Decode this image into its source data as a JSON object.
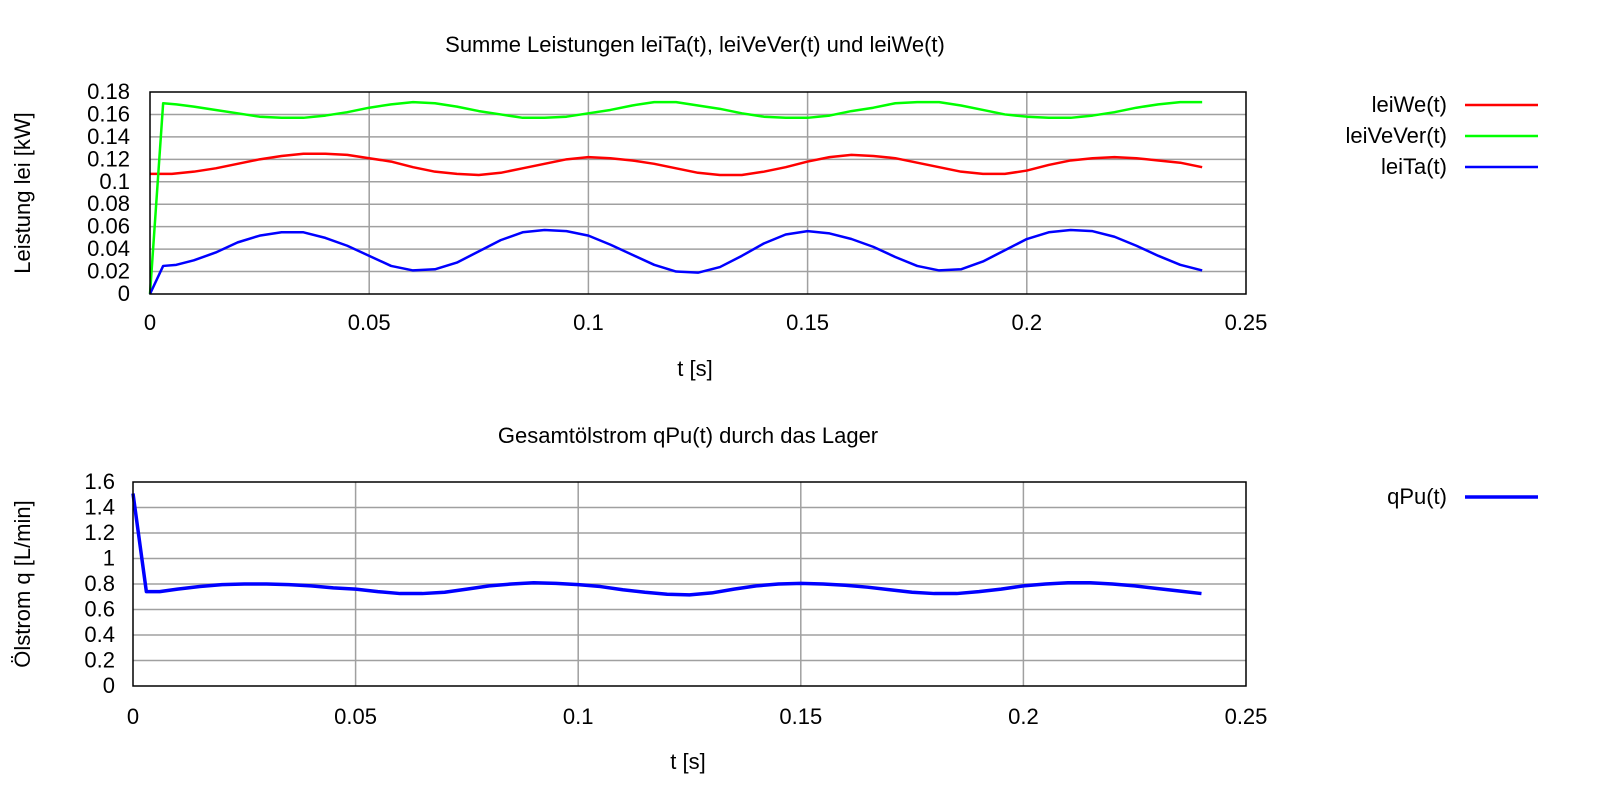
{
  "chart_data": [
    {
      "type": "line",
      "title": "Summe Leistungen leiTa(t), leiVeVer(t) und leiWe(t)",
      "xlabel": "t [s]",
      "ylabel": "Leistung lei [kW]",
      "xlim": [
        0,
        0.25
      ],
      "ylim": [
        0,
        0.18
      ],
      "xticks": [
        0,
        0.05,
        0.1,
        0.15,
        0.2,
        0.25
      ],
      "xtick_labels": [
        "0",
        "0.05",
        "0.1",
        "0.15",
        "0.2",
        "0.25"
      ],
      "yticks": [
        0,
        0.02,
        0.04,
        0.06,
        0.08,
        0.1,
        0.12,
        0.14,
        0.16,
        0.18
      ],
      "ytick_labels": [
        "0",
        "0.02",
        "0.04",
        "0.06",
        "0.08",
        "0.1",
        "0.12",
        "0.14",
        "0.16",
        "0.18"
      ],
      "grid": true,
      "legend_position": "right",
      "series": [
        {
          "name": "leiWe(t)",
          "color": "#ff0000",
          "x": [
            0.0,
            0.005,
            0.01,
            0.015,
            0.02,
            0.025,
            0.03,
            0.035,
            0.04,
            0.045,
            0.05,
            0.055,
            0.06,
            0.065,
            0.07,
            0.075,
            0.08,
            0.085,
            0.09,
            0.095,
            0.1,
            0.105,
            0.11,
            0.115,
            0.12,
            0.125,
            0.13,
            0.135,
            0.14,
            0.145,
            0.15,
            0.155,
            0.16,
            0.165,
            0.17,
            0.175,
            0.18,
            0.185,
            0.19,
            0.195,
            0.2,
            0.205,
            0.21,
            0.215,
            0.22,
            0.225,
            0.23,
            0.235,
            0.24
          ],
          "y": [
            0.107,
            0.107,
            0.109,
            0.112,
            0.116,
            0.12,
            0.123,
            0.125,
            0.125,
            0.124,
            0.121,
            0.118,
            0.113,
            0.109,
            0.107,
            0.106,
            0.108,
            0.112,
            0.116,
            0.12,
            0.122,
            0.121,
            0.119,
            0.116,
            0.112,
            0.108,
            0.106,
            0.106,
            0.109,
            0.113,
            0.118,
            0.122,
            0.124,
            0.123,
            0.121,
            0.117,
            0.113,
            0.109,
            0.107,
            0.107,
            0.11,
            0.115,
            0.119,
            0.121,
            0.122,
            0.121,
            0.119,
            0.117,
            0.113
          ]
        },
        {
          "name": "leiVeVer(t)",
          "color": "#00ff00",
          "x": [
            0.0,
            0.003,
            0.006,
            0.01,
            0.015,
            0.02,
            0.025,
            0.03,
            0.035,
            0.04,
            0.045,
            0.05,
            0.055,
            0.06,
            0.065,
            0.07,
            0.075,
            0.08,
            0.085,
            0.09,
            0.095,
            0.1,
            0.105,
            0.11,
            0.115,
            0.12,
            0.125,
            0.13,
            0.135,
            0.14,
            0.145,
            0.15,
            0.155,
            0.16,
            0.165,
            0.17,
            0.175,
            0.18,
            0.185,
            0.19,
            0.195,
            0.2,
            0.205,
            0.21,
            0.215,
            0.22,
            0.225,
            0.23,
            0.235,
            0.24
          ],
          "y": [
            0.0,
            0.17,
            0.169,
            0.167,
            0.164,
            0.161,
            0.158,
            0.157,
            0.157,
            0.159,
            0.162,
            0.166,
            0.169,
            0.171,
            0.17,
            0.167,
            0.163,
            0.16,
            0.157,
            0.157,
            0.158,
            0.161,
            0.164,
            0.168,
            0.171,
            0.171,
            0.168,
            0.165,
            0.161,
            0.158,
            0.157,
            0.157,
            0.159,
            0.163,
            0.166,
            0.17,
            0.171,
            0.171,
            0.168,
            0.164,
            0.16,
            0.158,
            0.157,
            0.157,
            0.159,
            0.162,
            0.166,
            0.169,
            0.171,
            0.171
          ]
        },
        {
          "name": "leiTa(t)",
          "color": "#0000ff",
          "x": [
            0.0,
            0.003,
            0.006,
            0.01,
            0.015,
            0.02,
            0.025,
            0.03,
            0.035,
            0.04,
            0.045,
            0.05,
            0.055,
            0.06,
            0.065,
            0.07,
            0.075,
            0.08,
            0.085,
            0.09,
            0.095,
            0.1,
            0.105,
            0.11,
            0.115,
            0.12,
            0.125,
            0.13,
            0.135,
            0.14,
            0.145,
            0.15,
            0.155,
            0.16,
            0.165,
            0.17,
            0.175,
            0.18,
            0.185,
            0.19,
            0.195,
            0.2,
            0.205,
            0.21,
            0.215,
            0.22,
            0.225,
            0.23,
            0.235,
            0.24
          ],
          "y": [
            0.0,
            0.025,
            0.026,
            0.03,
            0.037,
            0.046,
            0.052,
            0.055,
            0.055,
            0.05,
            0.043,
            0.034,
            0.025,
            0.021,
            0.022,
            0.028,
            0.038,
            0.048,
            0.055,
            0.057,
            0.056,
            0.052,
            0.044,
            0.035,
            0.026,
            0.02,
            0.019,
            0.024,
            0.034,
            0.045,
            0.053,
            0.056,
            0.054,
            0.049,
            0.042,
            0.033,
            0.025,
            0.021,
            0.022,
            0.029,
            0.039,
            0.049,
            0.055,
            0.057,
            0.056,
            0.051,
            0.043,
            0.034,
            0.026,
            0.021
          ]
        }
      ]
    },
    {
      "type": "line",
      "title": "Gesamtölstrom qPu(t) durch das Lager",
      "xlabel": "t [s]",
      "ylabel": "Ölstrom q [L/min]",
      "xlim": [
        0,
        0.25
      ],
      "ylim": [
        0,
        1.6
      ],
      "xticks": [
        0,
        0.05,
        0.1,
        0.15,
        0.2,
        0.25
      ],
      "xtick_labels": [
        "0",
        "0.05",
        "0.1",
        "0.15",
        "0.2",
        "0.25"
      ],
      "yticks": [
        0,
        0.2,
        0.4,
        0.6,
        0.8,
        1.0,
        1.2,
        1.4,
        1.6
      ],
      "ytick_labels": [
        "0",
        "0.2",
        "0.4",
        "0.6",
        "0.8",
        "1",
        "1.2",
        "1.4",
        "1.6"
      ],
      "grid": true,
      "legend_position": "right",
      "series": [
        {
          "name": "qPu(t)",
          "color": "#0000ff",
          "x": [
            0.0,
            0.003,
            0.006,
            0.01,
            0.015,
            0.02,
            0.025,
            0.03,
            0.035,
            0.04,
            0.045,
            0.05,
            0.055,
            0.06,
            0.065,
            0.07,
            0.075,
            0.08,
            0.085,
            0.09,
            0.095,
            0.1,
            0.105,
            0.11,
            0.115,
            0.12,
            0.125,
            0.13,
            0.135,
            0.14,
            0.145,
            0.15,
            0.155,
            0.16,
            0.165,
            0.17,
            0.175,
            0.18,
            0.185,
            0.19,
            0.195,
            0.2,
            0.205,
            0.21,
            0.215,
            0.22,
            0.225,
            0.23,
            0.235,
            0.24
          ],
          "y": [
            1.51,
            0.74,
            0.74,
            0.76,
            0.78,
            0.795,
            0.8,
            0.8,
            0.795,
            0.785,
            0.77,
            0.76,
            0.74,
            0.725,
            0.725,
            0.735,
            0.76,
            0.785,
            0.8,
            0.81,
            0.805,
            0.795,
            0.78,
            0.755,
            0.735,
            0.72,
            0.715,
            0.73,
            0.76,
            0.785,
            0.8,
            0.805,
            0.8,
            0.79,
            0.775,
            0.755,
            0.735,
            0.725,
            0.725,
            0.74,
            0.76,
            0.785,
            0.8,
            0.81,
            0.81,
            0.8,
            0.785,
            0.765,
            0.745,
            0.725
          ]
        }
      ]
    }
  ]
}
